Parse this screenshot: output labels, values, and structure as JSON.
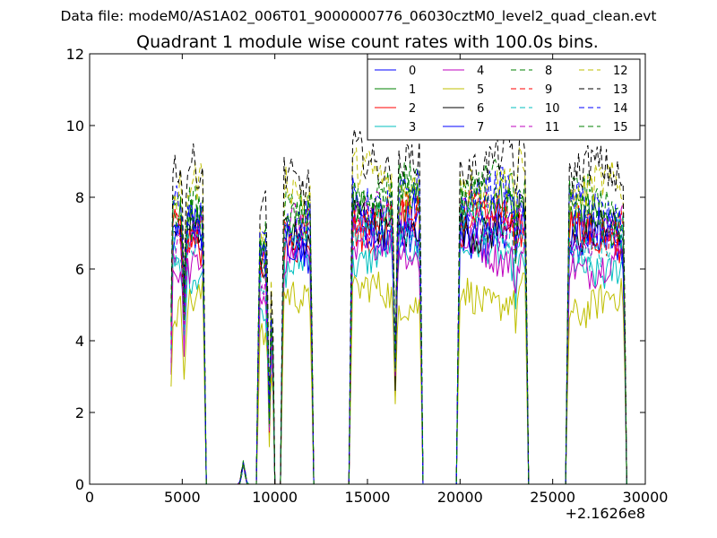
{
  "header": {
    "suptitle": "Data file: modeM0/AS1A02_006T01_9000000776_06030cztM0_level2_quad_clean.evt",
    "title": "Quadrant 1 module wise count rates with 100.0s bins."
  },
  "colors": {
    "blue": "#0000ff",
    "green": "#008000",
    "red": "#ff0000",
    "cyan": "#00bfbf",
    "magenta": "#bf00bf",
    "olive": "#bfbf00",
    "black": "#000000"
  },
  "chart_data": {
    "type": "line",
    "title": "Quadrant 1 module wise count rates with 100.0s bins.",
    "xlabel": "",
    "ylabel": "",
    "xlim": [
      0,
      30000
    ],
    "ylim": [
      0,
      12
    ],
    "x_offset_label": "+2.1626e8",
    "xticks": [
      0,
      5000,
      10000,
      15000,
      20000,
      25000,
      30000
    ],
    "xtick_labels": [
      "0",
      "5000",
      "10000",
      "15000",
      "20000",
      "25000",
      "30000"
    ],
    "yticks": [
      0,
      2,
      4,
      6,
      8,
      10,
      12
    ],
    "ytick_labels": [
      "0",
      "2",
      "4",
      "6",
      "8",
      "10",
      "12"
    ],
    "legend_position": "top-right",
    "legend_columns": 4,
    "series": [
      {
        "name": "0",
        "color": "#0000ff",
        "dash": "solid",
        "base": 6.6,
        "noise": 0.55
      },
      {
        "name": "1",
        "color": "#008000",
        "dash": "solid",
        "base": 7.3,
        "noise": 0.55
      },
      {
        "name": "2",
        "color": "#ff0000",
        "dash": "solid",
        "base": 6.9,
        "noise": 0.55
      },
      {
        "name": "3",
        "color": "#00bfbf",
        "dash": "solid",
        "base": 6.1,
        "noise": 0.5
      },
      {
        "name": "4",
        "color": "#bf00bf",
        "dash": "solid",
        "base": 6.2,
        "noise": 0.5
      },
      {
        "name": "5",
        "color": "#bfbf00",
        "dash": "solid",
        "base": 5.0,
        "noise": 0.5
      },
      {
        "name": "6",
        "color": "#000000",
        "dash": "solid",
        "base": 6.9,
        "noise": 0.55
      },
      {
        "name": "7",
        "color": "#0000ff",
        "dash": "solid",
        "base": 7.0,
        "noise": 0.6
      },
      {
        "name": "8",
        "color": "#008000",
        "dash": "dashed",
        "base": 7.9,
        "noise": 0.55
      },
      {
        "name": "9",
        "color": "#ff0000",
        "dash": "dashed",
        "base": 7.2,
        "noise": 0.55
      },
      {
        "name": "10",
        "color": "#00bfbf",
        "dash": "dashed",
        "base": 6.8,
        "noise": 0.55
      },
      {
        "name": "11",
        "color": "#bf00bf",
        "dash": "dashed",
        "base": 7.0,
        "noise": 0.55
      },
      {
        "name": "12",
        "color": "#bfbf00",
        "dash": "dashed",
        "base": 8.1,
        "noise": 0.6
      },
      {
        "name": "13",
        "color": "#000000",
        "dash": "dashed",
        "base": 8.6,
        "noise": 0.6
      },
      {
        "name": "14",
        "color": "#0000ff",
        "dash": "dashed",
        "base": 7.6,
        "noise": 0.55
      },
      {
        "name": "15",
        "color": "#008000",
        "dash": "dashed",
        "base": 7.5,
        "noise": 0.55
      }
    ],
    "active_segments": [
      {
        "start": 4400,
        "end": 6200,
        "scale": 1.0
      },
      {
        "start": 9100,
        "end": 9900,
        "scale": 0.85
      },
      {
        "start": 10400,
        "end": 12000,
        "scale": 1.0
      },
      {
        "start": 14100,
        "end": 17900,
        "scale": 1.05
      },
      {
        "start": 19900,
        "end": 23600,
        "scale": 1.05
      },
      {
        "start": 25800,
        "end": 28900,
        "scale": 1.0
      }
    ],
    "small_bump": {
      "start": 8100,
      "end": 8500,
      "peak": 0.6
    },
    "dips": [
      {
        "x": 5100,
        "depth": 0.35
      },
      {
        "x": 9700,
        "depth": 0.75
      },
      {
        "x": 16500,
        "depth": 0.6
      },
      {
        "x": 23000,
        "depth": 0.15
      }
    ]
  }
}
